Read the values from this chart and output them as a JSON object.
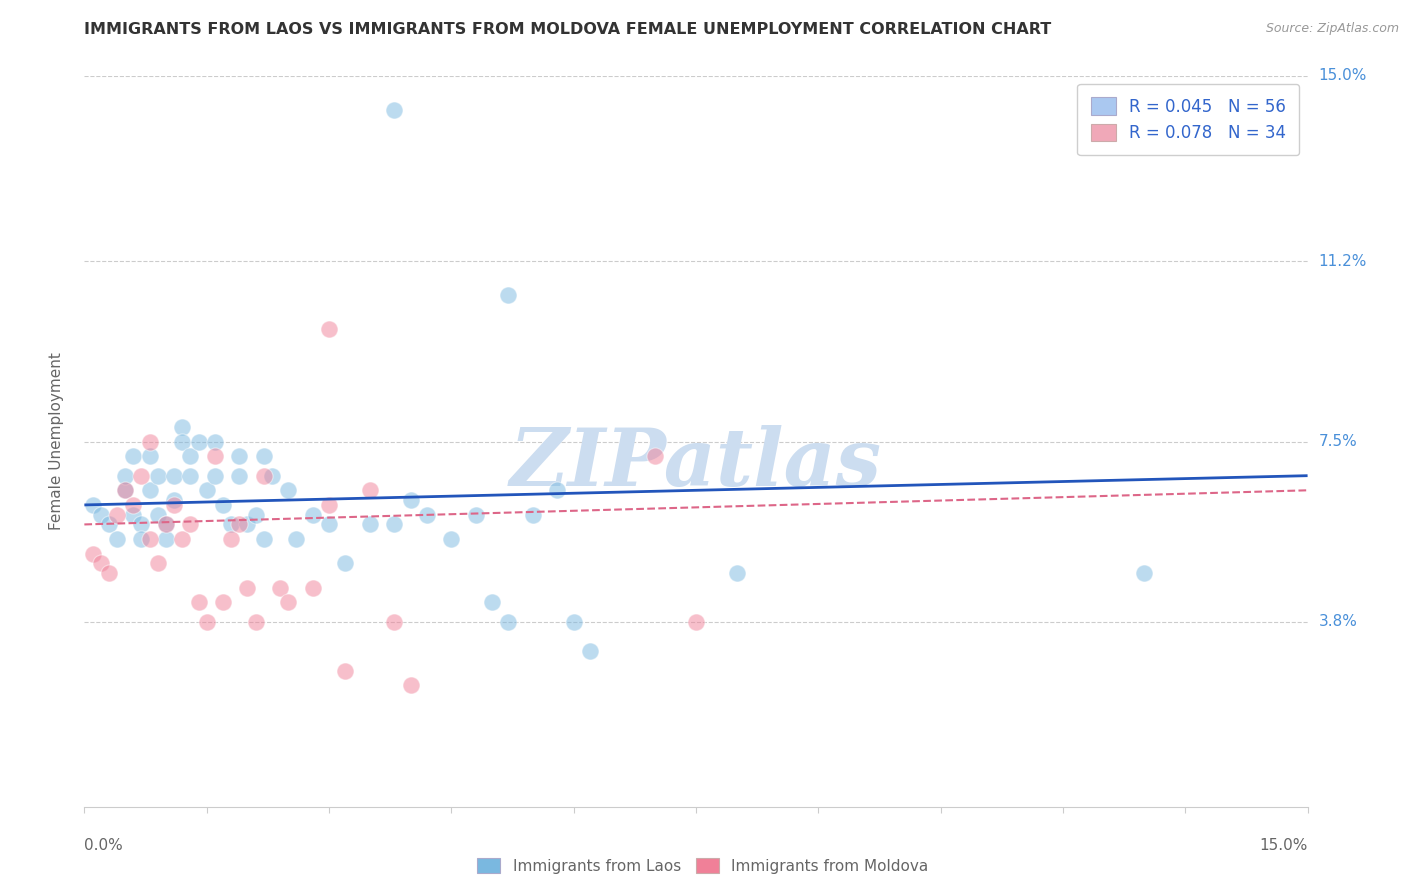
{
  "title": "IMMIGRANTS FROM LAOS VS IMMIGRANTS FROM MOLDOVA FEMALE UNEMPLOYMENT CORRELATION CHART",
  "source": "Source: ZipAtlas.com",
  "ylabel": "Female Unemployment",
  "xmin": 0.0,
  "xmax": 0.15,
  "ymin": 0.0,
  "ymax": 0.15,
  "yticks": [
    0.038,
    0.075,
    0.112,
    0.15
  ],
  "right_ytick_labels": [
    "3.8%",
    "7.5%",
    "11.2%",
    "15.0%"
  ],
  "legend_entries": [
    {
      "label": "R = 0.045   N = 56",
      "color": "#aac8f0"
    },
    {
      "label": "R = 0.078   N = 34",
      "color": "#f0a8b8"
    }
  ],
  "bottom_legend": [
    "Immigrants from Laos",
    "Immigrants from Moldova"
  ],
  "laos_color": "#7ab8e0",
  "moldova_color": "#f08098",
  "laos_points": [
    [
      0.001,
      0.062
    ],
    [
      0.002,
      0.06
    ],
    [
      0.003,
      0.058
    ],
    [
      0.004,
      0.055
    ],
    [
      0.005,
      0.065
    ],
    [
      0.005,
      0.068
    ],
    [
      0.006,
      0.06
    ],
    [
      0.006,
      0.072
    ],
    [
      0.007,
      0.058
    ],
    [
      0.007,
      0.055
    ],
    [
      0.008,
      0.072
    ],
    [
      0.008,
      0.065
    ],
    [
      0.009,
      0.06
    ],
    [
      0.009,
      0.068
    ],
    [
      0.01,
      0.058
    ],
    [
      0.01,
      0.055
    ],
    [
      0.011,
      0.063
    ],
    [
      0.011,
      0.068
    ],
    [
      0.012,
      0.078
    ],
    [
      0.012,
      0.075
    ],
    [
      0.013,
      0.072
    ],
    [
      0.013,
      0.068
    ],
    [
      0.014,
      0.075
    ],
    [
      0.015,
      0.065
    ],
    [
      0.016,
      0.075
    ],
    [
      0.016,
      0.068
    ],
    [
      0.017,
      0.062
    ],
    [
      0.018,
      0.058
    ],
    [
      0.019,
      0.068
    ],
    [
      0.019,
      0.072
    ],
    [
      0.02,
      0.058
    ],
    [
      0.021,
      0.06
    ],
    [
      0.022,
      0.055
    ],
    [
      0.022,
      0.072
    ],
    [
      0.023,
      0.068
    ],
    [
      0.025,
      0.065
    ],
    [
      0.026,
      0.055
    ],
    [
      0.028,
      0.06
    ],
    [
      0.03,
      0.058
    ],
    [
      0.032,
      0.05
    ],
    [
      0.035,
      0.058
    ],
    [
      0.038,
      0.058
    ],
    [
      0.04,
      0.063
    ],
    [
      0.042,
      0.06
    ],
    [
      0.045,
      0.055
    ],
    [
      0.048,
      0.06
    ],
    [
      0.05,
      0.042
    ],
    [
      0.052,
      0.038
    ],
    [
      0.055,
      0.06
    ],
    [
      0.058,
      0.065
    ],
    [
      0.06,
      0.038
    ],
    [
      0.062,
      0.032
    ],
    [
      0.038,
      0.143
    ],
    [
      0.052,
      0.105
    ],
    [
      0.08,
      0.048
    ],
    [
      0.13,
      0.048
    ]
  ],
  "moldova_points": [
    [
      0.001,
      0.052
    ],
    [
      0.002,
      0.05
    ],
    [
      0.003,
      0.048
    ],
    [
      0.004,
      0.06
    ],
    [
      0.005,
      0.065
    ],
    [
      0.006,
      0.062
    ],
    [
      0.007,
      0.068
    ],
    [
      0.008,
      0.055
    ],
    [
      0.008,
      0.075
    ],
    [
      0.009,
      0.05
    ],
    [
      0.01,
      0.058
    ],
    [
      0.011,
      0.062
    ],
    [
      0.012,
      0.055
    ],
    [
      0.013,
      0.058
    ],
    [
      0.014,
      0.042
    ],
    [
      0.015,
      0.038
    ],
    [
      0.016,
      0.072
    ],
    [
      0.017,
      0.042
    ],
    [
      0.018,
      0.055
    ],
    [
      0.019,
      0.058
    ],
    [
      0.02,
      0.045
    ],
    [
      0.021,
      0.038
    ],
    [
      0.022,
      0.068
    ],
    [
      0.024,
      0.045
    ],
    [
      0.025,
      0.042
    ],
    [
      0.028,
      0.045
    ],
    [
      0.03,
      0.098
    ],
    [
      0.03,
      0.062
    ],
    [
      0.032,
      0.028
    ],
    [
      0.035,
      0.065
    ],
    [
      0.038,
      0.038
    ],
    [
      0.04,
      0.025
    ],
    [
      0.07,
      0.072
    ],
    [
      0.075,
      0.038
    ]
  ],
  "laos_trend": [
    0.062,
    0.068
  ],
  "moldova_trend": [
    0.058,
    0.065
  ],
  "watermark_text": "ZIPatlas",
  "watermark_color": "#ccddf0",
  "background_color": "#ffffff",
  "grid_color": "#cccccc",
  "title_color": "#333333",
  "source_color": "#999999",
  "axis_label_color": "#666666",
  "tick_label_color": "#666666",
  "right_axis_color": "#4a90d9",
  "laos_line_color": "#2255bb",
  "moldova_line_color": "#dd6688",
  "legend_text_color": "#3366cc"
}
